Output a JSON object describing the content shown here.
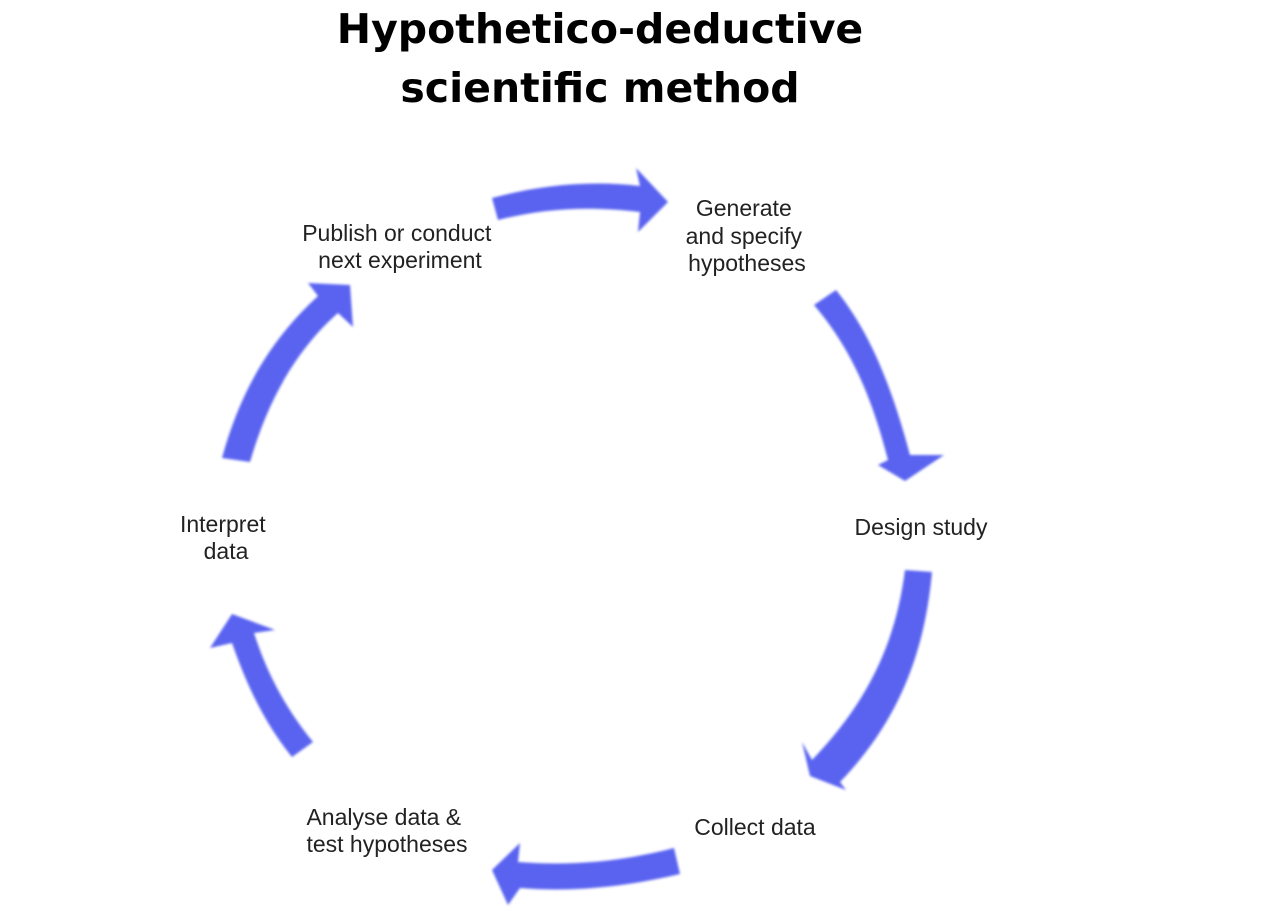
{
  "title": {
    "line1": "Hypothetico-deductive",
    "line2": "scientific method"
  },
  "arrow_color": "#5a64f0",
  "steps": [
    {
      "id": "generate",
      "lines": [
        "Generate",
        "and specify",
        "hypotheses"
      ]
    },
    {
      "id": "design",
      "lines": [
        "Design study"
      ]
    },
    {
      "id": "collect",
      "lines": [
        "Collect data"
      ]
    },
    {
      "id": "analyse",
      "lines": [
        "Analyse data &",
        "test hypotheses"
      ]
    },
    {
      "id": "interpret",
      "lines": [
        "Interpret",
        "data"
      ]
    },
    {
      "id": "publish",
      "lines": [
        "Publish or conduct",
        "next experiment"
      ]
    }
  ]
}
